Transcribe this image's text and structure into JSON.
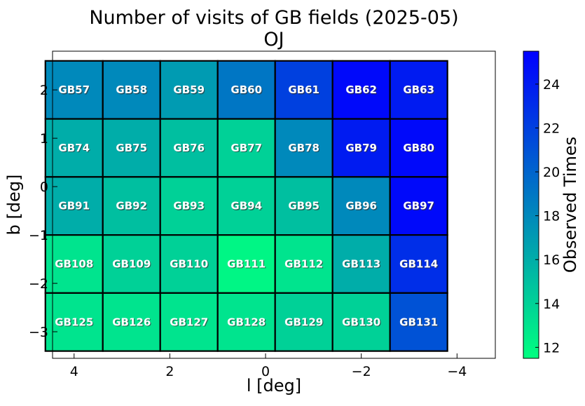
{
  "chart_data": {
    "type": "heatmap",
    "title": "Number of visits of GB fields (2025-05)",
    "subtitle": "OJ",
    "xlabel": "l [deg]",
    "ylabel": "b [deg]",
    "xlim": [
      4.45,
      -4.8
    ],
    "ylim": [
      -3.55,
      2.8
    ],
    "xticks": [
      4,
      2,
      0,
      -2,
      -4
    ],
    "yticks": [
      2,
      1,
      0,
      -1,
      -2,
      -3
    ],
    "xtick_labels": [
      "4",
      "2",
      "0",
      "−2",
      "−4"
    ],
    "ytick_labels": [
      "2",
      "1",
      "0",
      "−1",
      "−2",
      "−3"
    ],
    "colorbar": {
      "label": "Observed Times",
      "range": [
        11.5,
        25.5
      ],
      "ticks": [
        12,
        14,
        16,
        18,
        20,
        22,
        24
      ],
      "tick_labels": [
        "12",
        "14",
        "16",
        "18",
        "20",
        "22",
        "24"
      ],
      "color_low": "#00ff80",
      "color_high": "#0000ff"
    },
    "columns_l": [
      4,
      2.8,
      1.6,
      0.4,
      -0.8,
      -2.0,
      -3.2
    ],
    "rows": [
      {
        "b": 2.0,
        "fields": [
          "GB57",
          "GB58",
          "GB59",
          "GB60",
          "GB61",
          "GB62",
          "GB63"
        ],
        "values": [
          18,
          18,
          17,
          19,
          22,
          25,
          24
        ]
      },
      {
        "b": 0.8,
        "fields": [
          "GB74",
          "GB75",
          "GB76",
          "GB77",
          "GB78",
          "GB79",
          "GB80"
        ],
        "values": [
          16,
          16,
          15,
          14,
          18,
          24,
          25
        ]
      },
      {
        "b": -0.4,
        "fields": [
          "GB91",
          "GB92",
          "GB93",
          "GB94",
          "GB95",
          "GB96",
          "GB97"
        ],
        "values": [
          16,
          15,
          14,
          14,
          15,
          18,
          25
        ]
      },
      {
        "b": -1.6,
        "fields": [
          "GB108",
          "GB109",
          "GB110",
          "GB111",
          "GB112",
          "GB113",
          "GB114"
        ],
        "values": [
          13,
          14,
          14,
          12,
          13,
          16,
          23
        ]
      },
      {
        "b": -2.8,
        "fields": [
          "GB125",
          "GB126",
          "GB127",
          "GB128",
          "GB129",
          "GB130",
          "GB131"
        ],
        "values": [
          13,
          13,
          13,
          13,
          14,
          14,
          21
        ]
      }
    ]
  }
}
